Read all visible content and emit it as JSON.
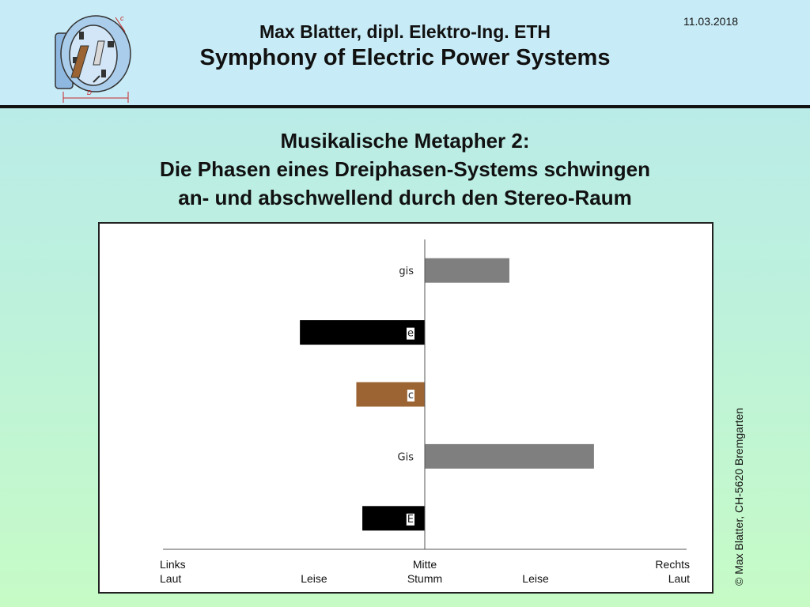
{
  "header": {
    "author": "Max Blatter, dipl. Elektro-Ing. ETH",
    "title": "Symphony of Electric Power Systems",
    "date": "11.03.2018",
    "logo_label_top": "c",
    "logo_label_bottom": "D"
  },
  "slide": {
    "title_line1": "Musikalische Metapher 2:",
    "title_line2": "Die Phasen eines Dreiphasen-Systems schwingen",
    "title_line3": "an- und abschwellend durch den Stereo-Raum"
  },
  "copyright": "© Max Blatter, CH-5620 Bremgarten",
  "colors": {
    "header_bg": "#c8ecf7",
    "bar_black": "#000000",
    "bar_gray": "#7f7f7f",
    "bar_brown": "#9c6432"
  },
  "chart_data": {
    "type": "bar",
    "orientation": "horizontal",
    "categories": [
      "gis",
      "e",
      "c",
      "Gis",
      "E"
    ],
    "values": [
      0.42,
      -0.62,
      -0.34,
      0.84,
      -0.31
    ],
    "bar_colors": [
      "#7f7f7f",
      "#000000",
      "#9c6432",
      "#7f7f7f",
      "#000000"
    ],
    "xlim": [
      -1.3,
      1.3
    ],
    "x_tick_labels": [
      {
        "value": -1.3,
        "line1": "Links",
        "line2": "Laut"
      },
      {
        "value": -0.55,
        "line1": "",
        "line2": "Leise"
      },
      {
        "value": 0,
        "line1": "Mitte",
        "line2": "Stumm"
      },
      {
        "value": 0.55,
        "line1": "",
        "line2": "Leise"
      },
      {
        "value": 1.3,
        "line1": "Rechts",
        "line2": "Laut"
      }
    ],
    "grid": false,
    "legend": "none"
  }
}
